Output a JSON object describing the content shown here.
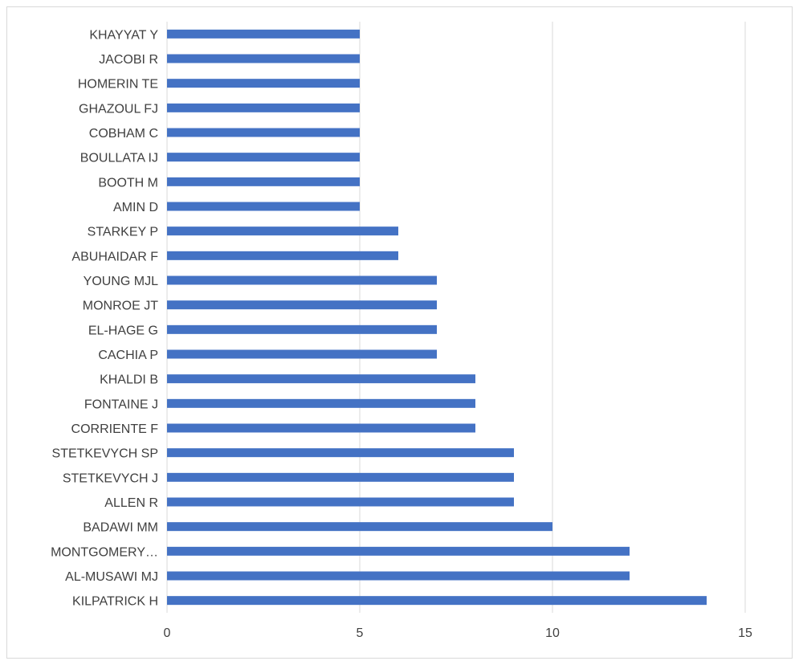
{
  "chart_data": {
    "type": "bar",
    "orientation": "horizontal",
    "title": "",
    "xlabel": "",
    "ylabel": "",
    "categories": [
      "KILPATRICK H",
      "AL-MUSAWI MJ",
      "MONTGOMERY…",
      "BADAWI MM",
      "ALLEN R",
      "STETKEVYCH J",
      "STETKEVYCH SP",
      "CORRIENTE F",
      "FONTAINE J",
      "KHALDI B",
      "CACHIA P",
      "EL-HAGE G",
      "MONROE JT",
      "YOUNG MJL",
      "ABUHAIDAR F",
      "STARKEY P",
      "AMIN D",
      "BOOTH M",
      "BOULLATA IJ",
      "COBHAM C",
      "GHAZOUL FJ",
      "HOMERIN TE",
      "JACOBI R",
      "KHAYYAT Y"
    ],
    "values": [
      14,
      12,
      12,
      10,
      9,
      9,
      9,
      8,
      8,
      8,
      7,
      7,
      7,
      7,
      6,
      6,
      5,
      5,
      5,
      5,
      5,
      5,
      5,
      5
    ],
    "xlim": [
      0,
      15
    ],
    "xticks": [
      "0",
      "5",
      "10",
      "15"
    ],
    "grid": "vertical",
    "legend": "none",
    "bar_color": "#4472c4",
    "grid_color": "#d9d9d9",
    "label_color": "#404040"
  }
}
